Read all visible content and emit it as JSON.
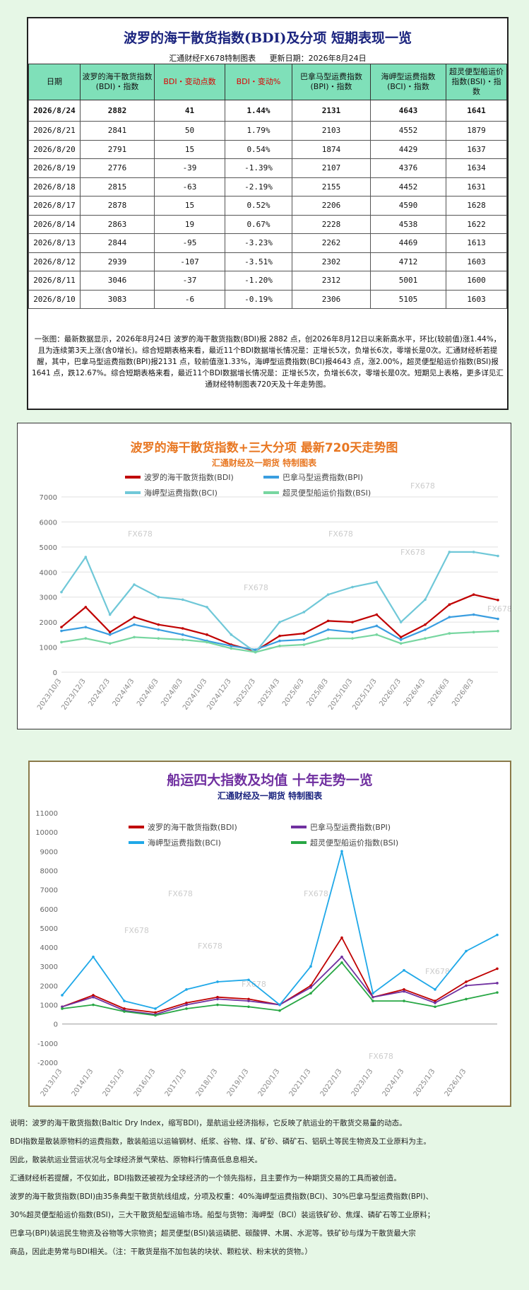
{
  "header": {
    "title": "波罗的海干散货指数(BDI)及分项  短期表现一览",
    "maker": "汇通财经FX678特制图表",
    "updated": "更新日期：2026年8月24日"
  },
  "table": {
    "headers": [
      "日期",
      "波罗的海干散货指数(BDI)・指数",
      "BDI・变动点数",
      "BDI・变动%",
      "巴拿马型运费指数(BPI)・指数",
      "海岬型运费指数(BCI)・指数",
      "超灵便型船运价指数(BSI)・指数"
    ],
    "rows": [
      [
        "2026/8/24",
        "2882",
        "41",
        "1.44%",
        "2131",
        "4643",
        "1641"
      ],
      [
        "2026/8/21",
        "2841",
        "50",
        "1.79%",
        "2103",
        "4552",
        "1879"
      ],
      [
        "2026/8/20",
        "2791",
        "15",
        "0.54%",
        "1874",
        "4429",
        "1637"
      ],
      [
        "2026/8/19",
        "2776",
        "-39",
        "-1.39%",
        "2107",
        "4376",
        "1634"
      ],
      [
        "2026/8/18",
        "2815",
        "-63",
        "-2.19%",
        "2155",
        "4452",
        "1631"
      ],
      [
        "2026/8/17",
        "2878",
        "15",
        "0.52%",
        "2206",
        "4590",
        "1628"
      ],
      [
        "2026/8/14",
        "2863",
        "19",
        "0.67%",
        "2228",
        "4538",
        "1622"
      ],
      [
        "2026/8/13",
        "2844",
        "-95",
        "-3.23%",
        "2262",
        "4469",
        "1613"
      ],
      [
        "2026/8/12",
        "2939",
        "-107",
        "-3.51%",
        "2302",
        "4712",
        "1603"
      ],
      [
        "2026/8/11",
        "3046",
        "-37",
        "-1.20%",
        "2312",
        "5001",
        "1600"
      ],
      [
        "2026/8/10",
        "3083",
        "-6",
        "-0.19%",
        "2306",
        "5105",
        "1603"
      ]
    ]
  },
  "note": "一张图：最新数据显示，2026年8月24日 波罗的海干散货指数(BDI)报 2882 点，创2026年8月12日以来新高水平，环比(较前值)涨1.44%，且为连续第3天上涨(含0增长)。综合短期表格来看，最近11个BDI数据增长情况是：正增长5次，负增长6次，零增长是0次。汇通财经析若提醒，其中，巴拿马型运费指数(BPI)报2131 点，较前值涨1.33%，海岬型运费指数(BCI)报4643 点，涨2.00%，超灵便型船运价指数(BSI)报1641 点，跌12.67%。综合短期表格来看，最近11个BDI数据增长情况是：正增长5次，负增长6次，零增长是0次。短期见上表格，更多详见汇通财经特制图表720天及十年走势图。",
  "chart_data": [
    {
      "type": "line",
      "title": "波罗的海干散货指数+三大分项  最新720天走势图",
      "subtitle": "汇通财经及一期货  特制图表",
      "watermark": "FX678",
      "ylim": [
        0,
        7000
      ],
      "yticks": [
        0,
        1000,
        2000,
        3000,
        4000,
        5000,
        6000,
        7000
      ],
      "x": [
        "2023/10/3",
        "2023/12/3",
        "2024/2/3",
        "2024/4/3",
        "2024/6/3",
        "2024/8/3",
        "2024/10/3",
        "2024/12/3",
        "2025/2/3",
        "2025/4/3",
        "2025/6/3",
        "2025/8/3",
        "2025/10/3",
        "2025/12/3",
        "2026/2/3",
        "2026/4/3",
        "2026/6/3",
        "2026/8/3",
        "2026/8/24"
      ],
      "grid": true,
      "legend": "top",
      "series": [
        {
          "name": "波罗的海干散货指数(BDI)",
          "color": "#c00000",
          "values": [
            1800,
            2600,
            1600,
            2200,
            1900,
            1750,
            1500,
            1100,
            850,
            1450,
            1550,
            2050,
            2000,
            2300,
            1400,
            1900,
            2700,
            3100,
            2882
          ]
        },
        {
          "name": "巴拿马型运费指数(BPI)",
          "color": "#3a9ee0",
          "values": [
            1650,
            1800,
            1500,
            1900,
            1700,
            1500,
            1250,
            1050,
            900,
            1250,
            1300,
            1700,
            1600,
            1850,
            1300,
            1700,
            2200,
            2300,
            2131
          ]
        },
        {
          "name": "海岬型运费指数(BCI)",
          "color": "#70c8d8",
          "values": [
            3200,
            4600,
            2300,
            3500,
            3000,
            2900,
            2600,
            1500,
            800,
            2000,
            2400,
            3100,
            3400,
            3600,
            2000,
            2900,
            4800,
            4800,
            4643
          ]
        },
        {
          "name": "超灵便型船运价指数(BSI)",
          "color": "#77d6a0",
          "values": [
            1200,
            1350,
            1150,
            1400,
            1350,
            1300,
            1200,
            950,
            800,
            1050,
            1100,
            1350,
            1350,
            1500,
            1150,
            1350,
            1550,
            1600,
            1641
          ]
        }
      ]
    },
    {
      "type": "line",
      "title": "船运四大指数及均值 十年走势一览",
      "subtitle": "汇通财经及一期货 特制图表",
      "watermark": "FX678",
      "ylim": [
        -2000,
        11000
      ],
      "yticks": [
        -2000,
        -1000,
        0,
        1000,
        2000,
        3000,
        4000,
        5000,
        6000,
        7000,
        8000,
        9000,
        10000,
        11000
      ],
      "x": [
        "2013/1/3",
        "2014/1/3",
        "2015/1/3",
        "2016/1/3",
        "2017/1/3",
        "2018/1/3",
        "2019/1/3",
        "2020/1/3",
        "2021/1/3",
        "2022/1/3",
        "2023/1/3",
        "2024/1/3",
        "2025/1/3",
        "2026/1/3",
        "2026/8/24"
      ],
      "grid": false,
      "legend": "top",
      "series": [
        {
          "name": "波罗的海干散货指数(BDI)",
          "color": "#c00000",
          "values": [
            900,
            1500,
            800,
            600,
            1100,
            1400,
            1300,
            1000,
            2000,
            4500,
            1400,
            1800,
            1200,
            2200,
            2882
          ]
        },
        {
          "name": "巴拿马型运费指数(BPI)",
          "color": "#7030a0",
          "values": [
            900,
            1400,
            700,
            500,
            1000,
            1300,
            1200,
            1000,
            1900,
            3500,
            1400,
            1700,
            1100,
            2000,
            2131
          ]
        },
        {
          "name": "海岬型运费指数(BCI)",
          "color": "#1fa8e8",
          "values": [
            1500,
            3500,
            1200,
            800,
            1800,
            2200,
            2300,
            1000,
            3000,
            9000,
            1600,
            2800,
            1800,
            3800,
            4643
          ]
        },
        {
          "name": "超灵便型船运价指数(BSI)",
          "color": "#28a745",
          "values": [
            800,
            1000,
            650,
            450,
            800,
            1000,
            900,
            700,
            1600,
            3200,
            1200,
            1200,
            900,
            1300,
            1641
          ]
        }
      ]
    }
  ],
  "description": [
    "说明：波罗的海干散货指数(Baltic Dry Index，缩写BDI)，是航运业经济指标，它反映了航运业的干散货交易量的动态。",
    "BDI指数是散装原物料的运费指数，散装船运以运输钢材、纸浆、谷物、煤、矿砂、磷矿石、铝矾土等民生物资及工业原料为主。",
    "因此，散装航运业营运状况与全球经济景气荣枯、原物料行情高低息息相关。",
    "汇通财经析若提醒，不仅如此，BDI指数还被视为全球经济的一个领先指标，且主要作为一种期货交易的工具而被创造。",
    "波罗的海干散货指数(BDI)由35条典型干散货航线组成，分项及权重：40%海岬型运费指数(BCI)、30%巴拿马型运费指数(BPI)、",
    "30%超灵便型船运价指数(BSI)，三大干散货船型运输市场。船型与货物：海岬型（BCI）装运铁矿砂、焦煤、磷矿石等工业原料；",
    "巴拿马(BPI)装运民生物资及谷物等大宗物资；超灵便型(BSI)装运磷肥、碳酸钾、木屑、水泥等。铁矿砂与煤为干散货最大宗",
    "商品，因此走势常与BDI相关。（注：干散货是指不加包装的块状、颗粒状、粉末状的货物。）"
  ]
}
